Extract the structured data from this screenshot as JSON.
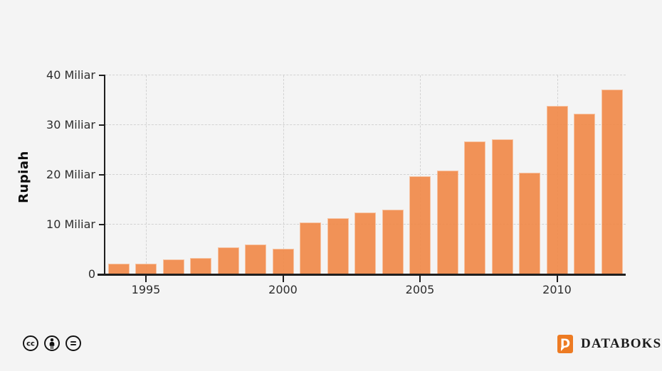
{
  "chart_data": {
    "type": "bar",
    "title": "",
    "xlabel": "",
    "ylabel": "Rupiah",
    "unit": "Miliar",
    "categories": [
      "1994",
      "1995",
      "1996",
      "1997",
      "1998",
      "1999",
      "2000",
      "2001",
      "2002",
      "2003",
      "2004",
      "2005",
      "2006",
      "2007",
      "2008",
      "2009",
      "2010",
      "2011",
      "2012"
    ],
    "values": [
      2.1,
      2.1,
      3.0,
      3.3,
      5.5,
      6.0,
      5.1,
      10.5,
      11.3,
      12.4,
      13.0,
      19.7,
      20.8,
      26.7,
      27.2,
      20.5,
      33.9,
      32.3,
      37.2
    ],
    "ylim": [
      0,
      40
    ],
    "y_ticks": [
      {
        "value": 0,
        "label": "0"
      },
      {
        "value": 10,
        "label": "10 Miliar"
      },
      {
        "value": 20,
        "label": "20 Miliar"
      },
      {
        "value": 30,
        "label": "30 Miliar"
      },
      {
        "value": 40,
        "label": "40 Miliar"
      }
    ],
    "x_ticks": [
      "1995",
      "2000",
      "2005",
      "2010"
    ],
    "grid": true,
    "legend_position": "none",
    "bar_color": "#F08A4A"
  },
  "footer": {
    "license": {
      "icons": [
        "cc-icon",
        "cc-attribution-icon",
        "cc-no-derivatives-icon"
      ]
    },
    "brand": {
      "name": "DATABOKS",
      "logo_letter": "D",
      "logo_color": "#ED7B23"
    }
  },
  "colors": {
    "background": "#F4F4F4",
    "bar": "#F08A4A",
    "axis": "#1F1F1F",
    "gridline": "#D2D2D2",
    "text": "#2D2D2D"
  }
}
